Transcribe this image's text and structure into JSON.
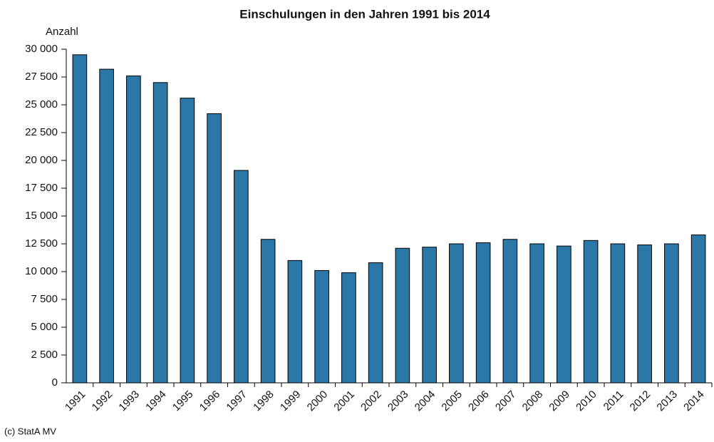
{
  "chart_data": {
    "type": "bar",
    "title": "Einschulungen in den Jahren 1991 bis 2014",
    "y_label": "Anzahl",
    "source": "(c) StatA MV",
    "categories": [
      "1991",
      "1992",
      "1993",
      "1994",
      "1995",
      "1996",
      "1997",
      "1998",
      "1999",
      "2000",
      "2001",
      "2002",
      "2003",
      "2004",
      "2005",
      "2006",
      "2007",
      "2008",
      "2009",
      "2010",
      "2011",
      "2012",
      "2013",
      "2014"
    ],
    "values": [
      29500,
      28200,
      27600,
      27000,
      25600,
      24200,
      19100,
      12900,
      11000,
      10100,
      9900,
      10800,
      12100,
      12200,
      12500,
      12600,
      12900,
      12500,
      12300,
      12800,
      12500,
      12400,
      12500,
      13300
    ],
    "color": "#2b78a8",
    "ylim": [
      0,
      30000
    ],
    "yticks": [
      0,
      {
        "value": 2500,
        "label": "2 500"
      },
      {
        "value": 5000,
        "label": "5 000"
      },
      {
        "value": 7500,
        "label": "7 500"
      },
      {
        "value": 10000,
        "label": "10 000"
      },
      {
        "value": 12500,
        "label": "12 500"
      },
      {
        "value": 15000,
        "label": "15 000"
      },
      {
        "value": 17500,
        "label": "17 500"
      },
      {
        "value": 20000,
        "label": "20 000"
      },
      {
        "value": 22500,
        "label": "22 500"
      },
      {
        "value": 25000,
        "label": "25 000"
      },
      {
        "value": 27500,
        "label": "27 500"
      },
      {
        "value": 30000,
        "label": "30 000"
      }
    ]
  }
}
